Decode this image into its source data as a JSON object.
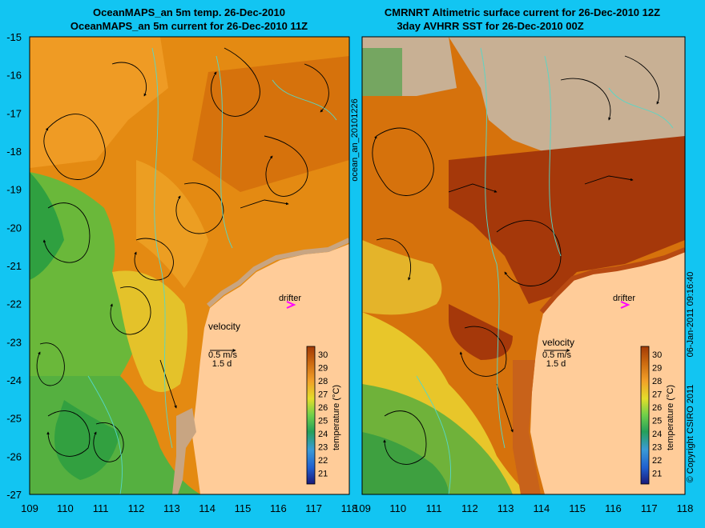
{
  "background_color": "#12c5f2",
  "land_color": "#ffcc99",
  "coast_color": "#d2b48c",
  "left_panel": {
    "title_line1": "OceanMAPS_an 5m temp. 26-Dec-2010",
    "title_line2": "OceanMAPS_an 5m current for 26-Dec-2010 11Z",
    "side_label": "ocean_an_20101226"
  },
  "right_panel": {
    "title_line1": "CMRNRT Altimetric surface current for 26-Dec-2010 12Z",
    "title_line2": "3day AVHRR SST for 26-Dec-2010 00Z",
    "side_label": "06-Jan-2011 09:16:40"
  },
  "copyright": "© Copyright CSIRO 2011",
  "drifter_label": "drifter",
  "velocity": {
    "label": "velocity",
    "speed": "0.5 m/s",
    "days": "1.5 d"
  },
  "colorbar": {
    "label": "temperature (°C)",
    "ticks": [
      "30",
      "29",
      "28",
      "27",
      "26",
      "25",
      "24",
      "23",
      "22",
      "21"
    ]
  },
  "axes": {
    "y_ticks": [
      "-15",
      "-16",
      "-17",
      "-18",
      "-19",
      "-20",
      "-21",
      "-22",
      "-23",
      "-24",
      "-25",
      "-26",
      "-27"
    ],
    "x_ticks": [
      "109",
      "110",
      "111",
      "112",
      "113",
      "114",
      "115",
      "116",
      "117",
      "118"
    ]
  }
}
